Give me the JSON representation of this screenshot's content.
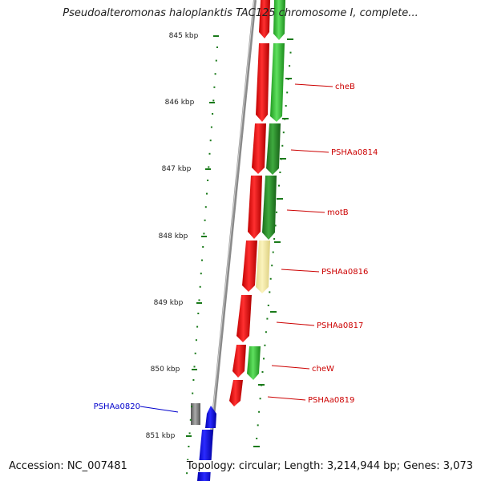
{
  "title": "Pseudoalteromonas haloplanktis TAC125 chromosome I, complete...",
  "accession": "Accession: NC_007481",
  "topology": "Topology: circular; Length: 3,214,944 bp; Genes: 3,073",
  "ruler": [
    "845 kbp",
    "846 kbp",
    "847 kbp",
    "848 kbp",
    "849 kbp",
    "850 kbp",
    "851 kbp"
  ],
  "genes": [
    {
      "name": "cheB",
      "strand": "forward",
      "color": "#2eb82e"
    },
    {
      "name": "PSHAa0814",
      "strand": "forward",
      "color": "#2e8b2e"
    },
    {
      "name": "motB",
      "strand": "forward",
      "color": "#2e8b2e"
    },
    {
      "name": "PSHAa0816",
      "strand": "forward",
      "color": "#efe6a0"
    },
    {
      "name": "PSHAa0817",
      "strand": "forward",
      "color": "#e00000"
    },
    {
      "name": "cheW",
      "strand": "forward",
      "color": "#2eb82e"
    },
    {
      "name": "PSHAa0819",
      "strand": "forward",
      "color": "#e00000"
    },
    {
      "name": "PSHAa0820",
      "strand": "reverse",
      "color": "#0000e0"
    }
  ],
  "colors": {
    "cds": "#e00000",
    "label_forward": "#cc0000",
    "label_reverse": "#0000cc",
    "tick": "#1a7a1a",
    "backbone": "#888888"
  }
}
